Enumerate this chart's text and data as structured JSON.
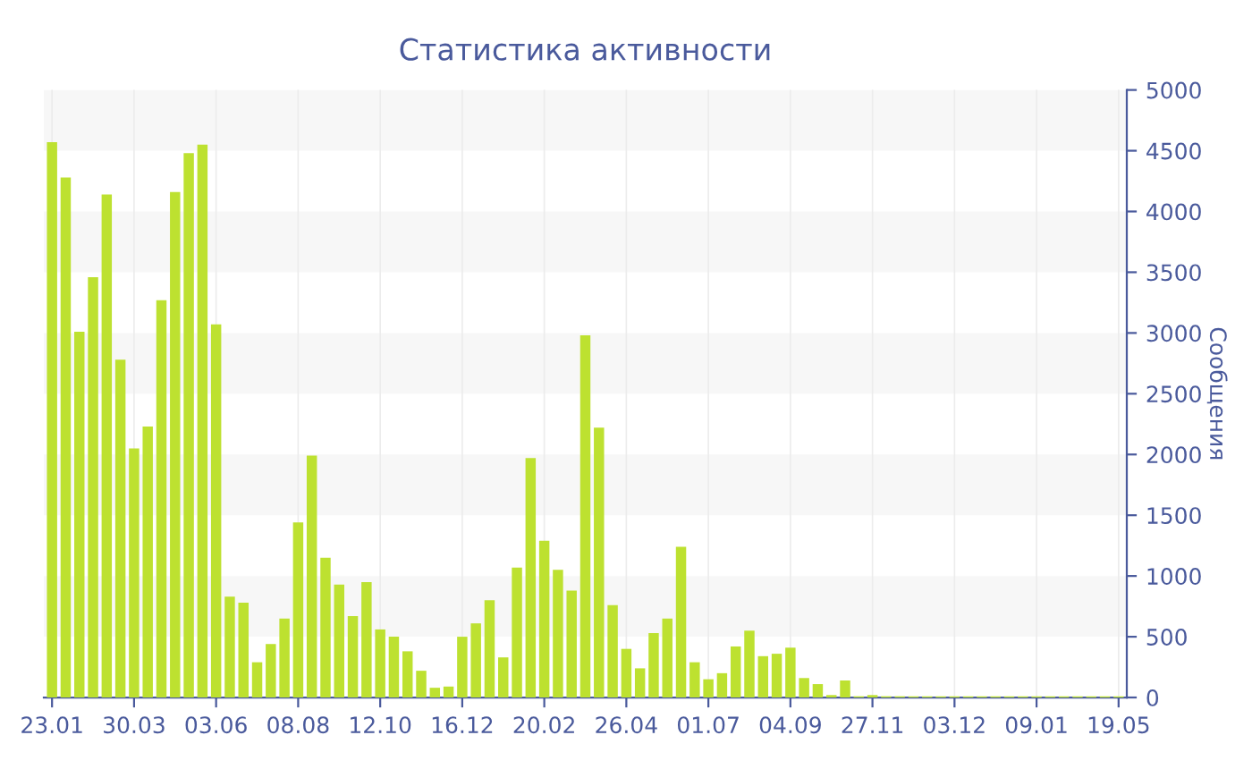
{
  "chart_data": {
    "type": "bar",
    "title": "Статистика активности",
    "ylabel": "Сообщения",
    "categories": [
      "23.01",
      null,
      null,
      null,
      null,
      null,
      "30.03",
      null,
      null,
      null,
      null,
      null,
      "03.06",
      null,
      null,
      null,
      null,
      null,
      "08.08",
      null,
      null,
      null,
      null,
      null,
      "12.10",
      null,
      null,
      null,
      null,
      null,
      "16.12",
      null,
      null,
      null,
      null,
      null,
      "20.02",
      null,
      null,
      null,
      null,
      null,
      "26.04",
      null,
      null,
      null,
      null,
      null,
      "01.07",
      null,
      null,
      null,
      null,
      null,
      "04.09",
      null,
      null,
      null,
      null,
      null,
      "27.11",
      null,
      null,
      null,
      null,
      null,
      "03.12",
      null,
      null,
      null,
      null,
      null,
      "09.01",
      null,
      null,
      null,
      null,
      null,
      "19.05"
    ],
    "values": [
      4570,
      4280,
      3010,
      3460,
      4140,
      2780,
      2050,
      2230,
      3270,
      4160,
      4480,
      4550,
      3070,
      830,
      780,
      290,
      440,
      650,
      1440,
      1990,
      1150,
      930,
      670,
      950,
      560,
      500,
      380,
      220,
      80,
      90,
      500,
      610,
      800,
      330,
      1070,
      1970,
      1290,
      1050,
      880,
      2980,
      2220,
      760,
      400,
      240,
      530,
      650,
      1240,
      290,
      150,
      200,
      420,
      550,
      340,
      360,
      410,
      160,
      110,
      20,
      140,
      10,
      20,
      10,
      10,
      10,
      10,
      10,
      10,
      10,
      10,
      10,
      10,
      10,
      10,
      10,
      10,
      10,
      10,
      10,
      10
    ],
    "color": "#bde130",
    "ylim": [
      0,
      5000
    ],
    "yticks": [
      0,
      500,
      1000,
      1500,
      2000,
      2500,
      3000,
      3500,
      4000,
      4500,
      5000
    ],
    "grid": "x",
    "bands": [
      {
        "axis": "y",
        "from": 500,
        "to": 1000,
        "color": "#f7f7f7"
      },
      {
        "axis": "y",
        "from": 1500,
        "to": 2000,
        "color": "#f7f7f7"
      },
      {
        "axis": "y",
        "from": 2500,
        "to": 3000,
        "color": "#f7f7f7"
      },
      {
        "axis": "y",
        "from": 3500,
        "to": 4000,
        "color": "#f7f7f7"
      },
      {
        "axis": "y",
        "from": 4500,
        "to": 5000,
        "color": "#f7f7f7"
      }
    ]
  }
}
